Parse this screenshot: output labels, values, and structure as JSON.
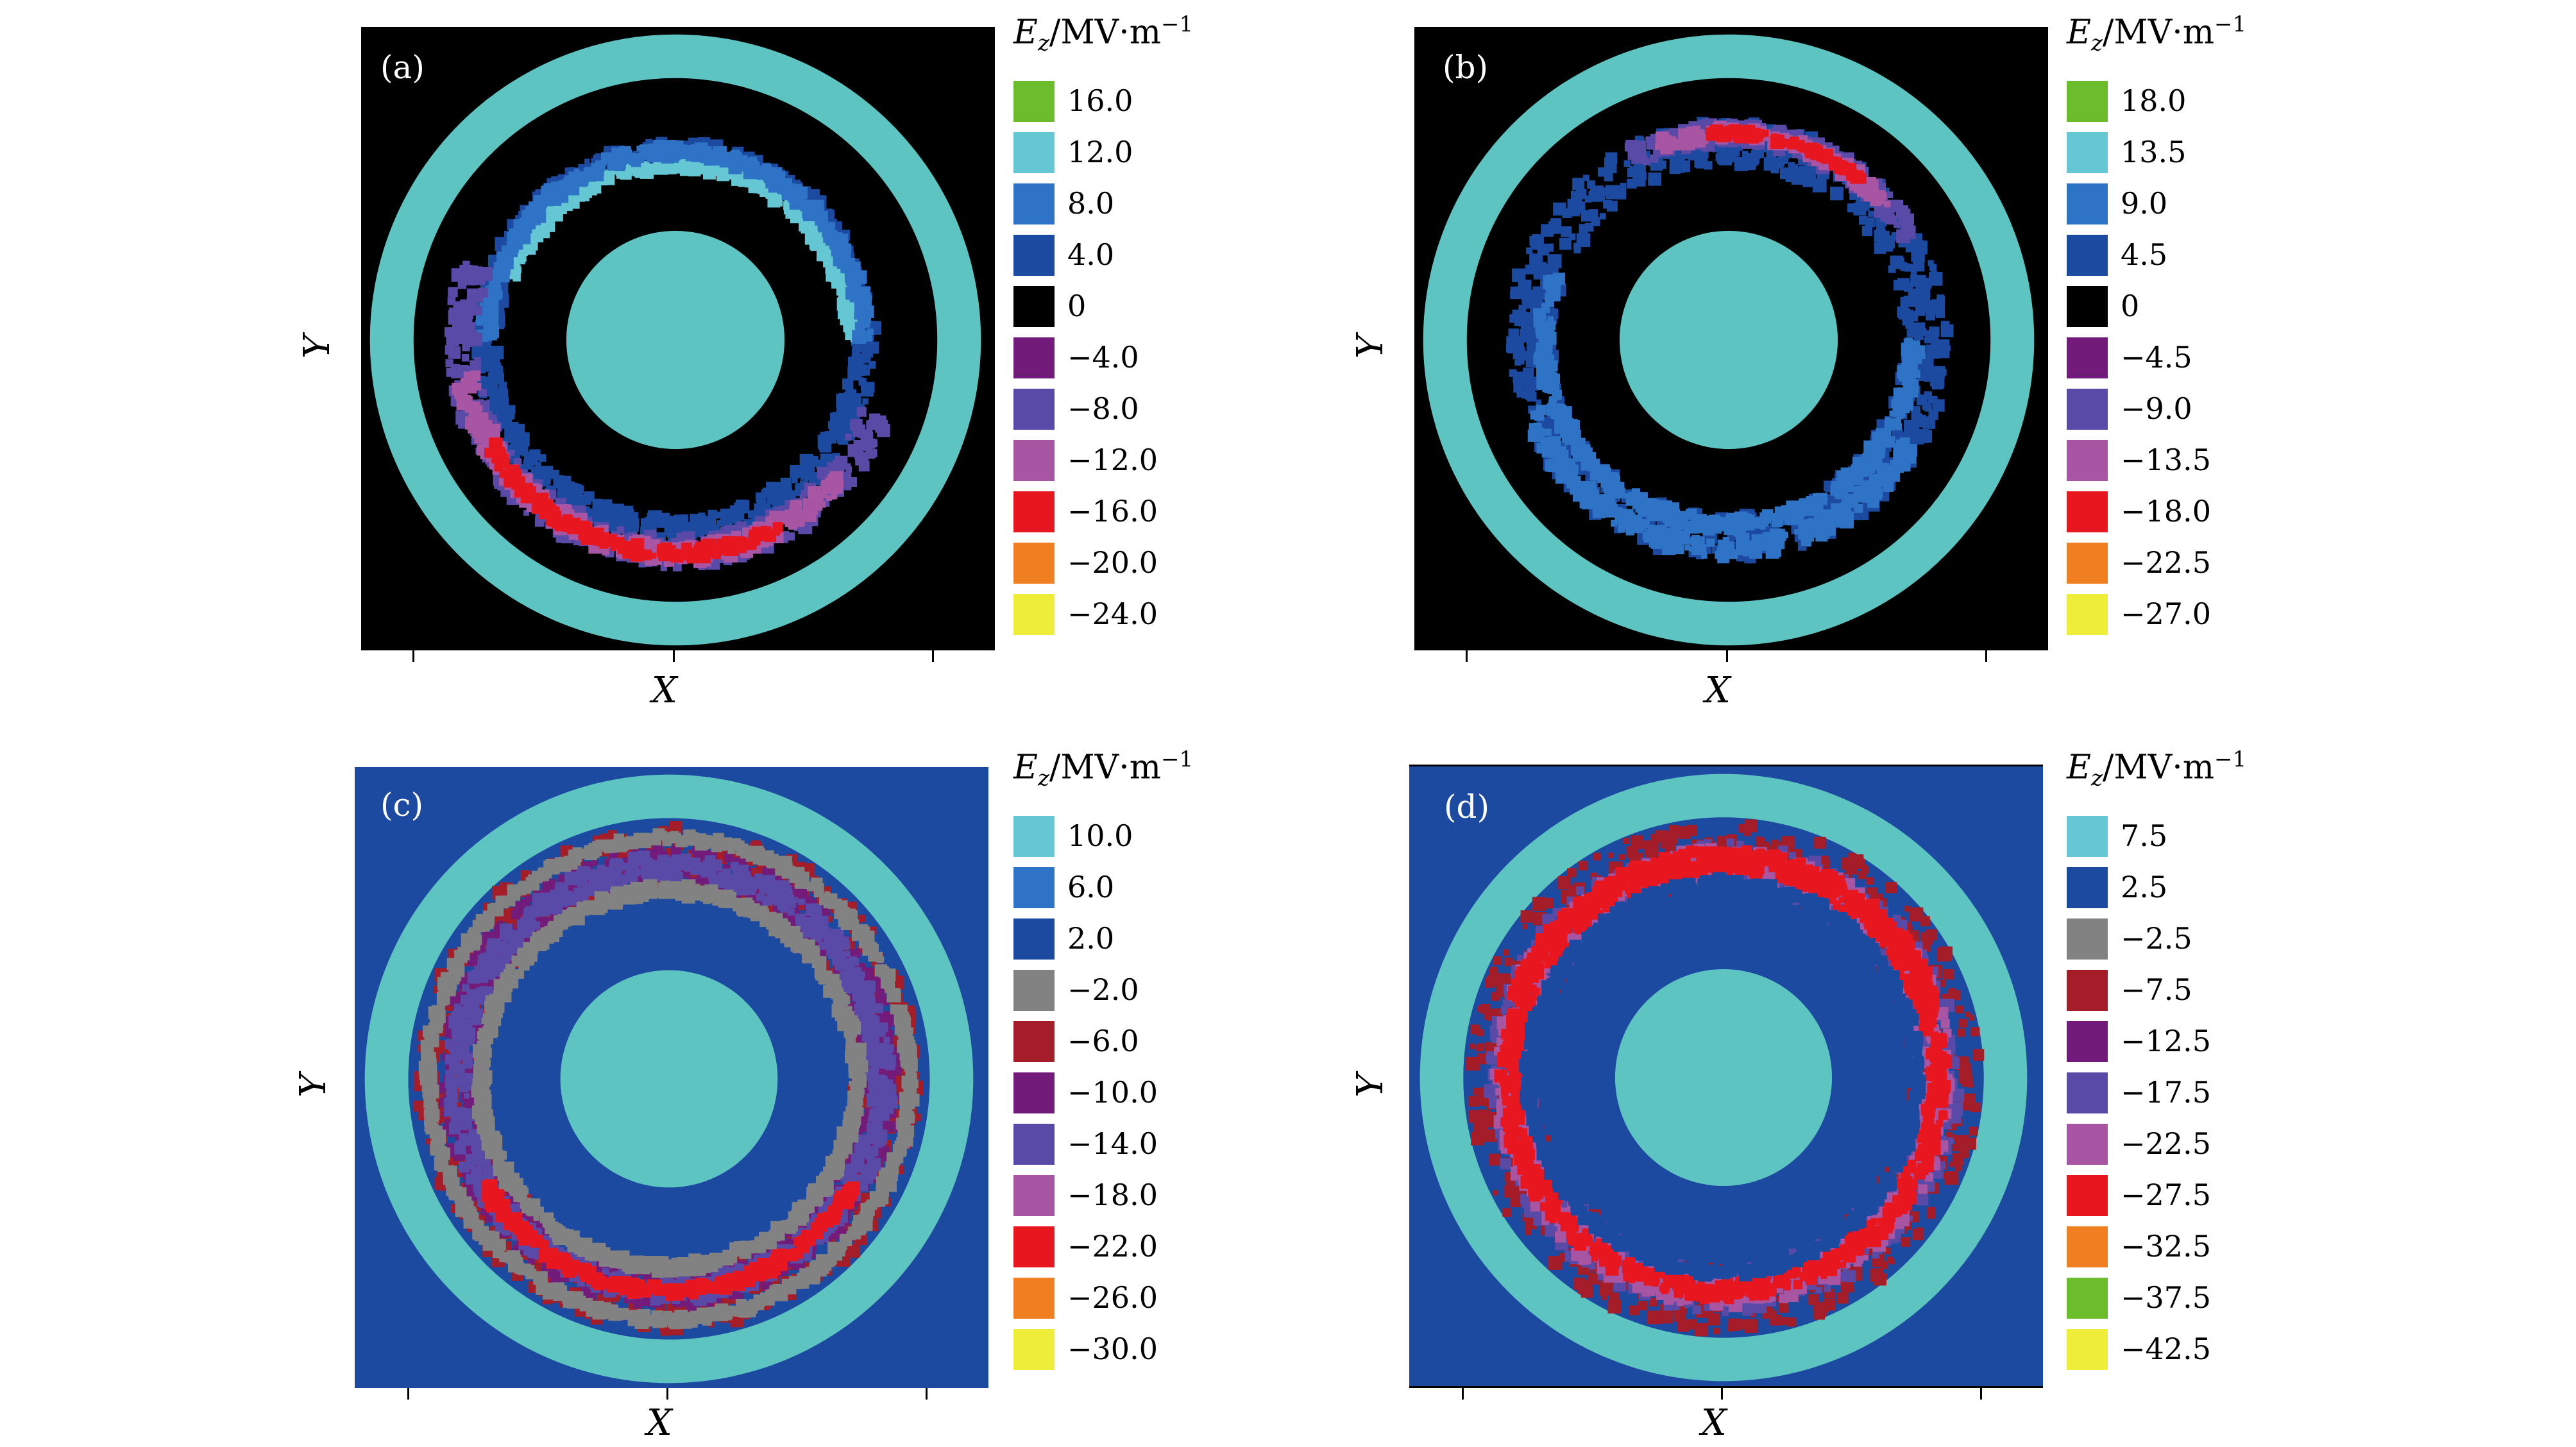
{
  "figure": {
    "legend_title": {
      "symbol": "E",
      "subscript": "z",
      "unit": "/MV·m",
      "exponent": "−1"
    },
    "panels": [
      {
        "label": "(a)",
        "xlabel": "X",
        "ylabel": "Y",
        "background": "#000000",
        "ring_color": "#5ec4c1",
        "legend": [
          {
            "value": "16.0",
            "color": "#6cbd2c"
          },
          {
            "value": "12.0",
            "color": "#64c7d3"
          },
          {
            "value": "8.0",
            "color": "#2f73c6"
          },
          {
            "value": "4.0",
            "color": "#1c4aa1"
          },
          {
            "value": "0",
            "color": "#000000"
          },
          {
            "value": "−4.0",
            "color": "#731b7b"
          },
          {
            "value": "−8.0",
            "color": "#5a4aa7"
          },
          {
            "value": "−12.0",
            "color": "#a855a4"
          },
          {
            "value": "−16.0",
            "color": "#e8171f"
          },
          {
            "value": "−20.0",
            "color": "#f07f22"
          },
          {
            "value": "−24.0",
            "color": "#eded3a"
          }
        ]
      },
      {
        "label": "(b)",
        "xlabel": "X",
        "ylabel": "Y",
        "background": "#000000",
        "ring_color": "#5ec4c1",
        "legend": [
          {
            "value": "18.0",
            "color": "#6cbd2c"
          },
          {
            "value": "13.5",
            "color": "#64c7d3"
          },
          {
            "value": "9.0",
            "color": "#2f73c6"
          },
          {
            "value": "4.5",
            "color": "#1c4aa1"
          },
          {
            "value": "0",
            "color": "#000000"
          },
          {
            "value": "−4.5",
            "color": "#731b7b"
          },
          {
            "value": "−9.0",
            "color": "#5a4aa7"
          },
          {
            "value": "−13.5",
            "color": "#a855a4"
          },
          {
            "value": "−18.0",
            "color": "#e8171f"
          },
          {
            "value": "−22.5",
            "color": "#f07f22"
          },
          {
            "value": "−27.0",
            "color": "#eded3a"
          }
        ]
      },
      {
        "label": "(c)",
        "xlabel": "X",
        "ylabel": "Y",
        "background": "#1c4aa1",
        "ring_color": "#5ec4c1",
        "legend": [
          {
            "value": "10.0",
            "color": "#64c7d3"
          },
          {
            "value": "6.0",
            "color": "#2f73c6"
          },
          {
            "value": "2.0",
            "color": "#1c4aa1"
          },
          {
            "value": "−2.0",
            "color": "#828282"
          },
          {
            "value": "−6.0",
            "color": "#a51d28"
          },
          {
            "value": "−10.0",
            "color": "#731b7b"
          },
          {
            "value": "−14.0",
            "color": "#5a4aa7"
          },
          {
            "value": "−18.0",
            "color": "#a855a4"
          },
          {
            "value": "−22.0",
            "color": "#e8171f"
          },
          {
            "value": "−26.0",
            "color": "#f07f22"
          },
          {
            "value": "−30.0",
            "color": "#eded3a"
          }
        ]
      },
      {
        "label": "(d)",
        "xlabel": "X",
        "ylabel": "Y",
        "background": "#1c4aa1",
        "ring_color": "#5ec4c1",
        "legend": [
          {
            "value": "7.5",
            "color": "#64c7d3"
          },
          {
            "value": "2.5",
            "color": "#1c4aa1"
          },
          {
            "value": "−2.5",
            "color": "#828282"
          },
          {
            "value": "−7.5",
            "color": "#a51d28"
          },
          {
            "value": "−12.5",
            "color": "#731b7b"
          },
          {
            "value": "−17.5",
            "color": "#5a4aa7"
          },
          {
            "value": "−22.5",
            "color": "#a855a4"
          },
          {
            "value": "−27.5",
            "color": "#e8171f"
          },
          {
            "value": "−32.5",
            "color": "#f07f22"
          },
          {
            "value": "−37.5",
            "color": "#6cbd2c"
          },
          {
            "value": "−42.5",
            "color": "#eded3a"
          }
        ]
      }
    ]
  },
  "chart_data": [
    {
      "type": "heatmap",
      "title": "(a)",
      "xlabel": "X",
      "ylabel": "Y",
      "colorbar_label": "E_z/MV·m^−1",
      "levels": [
        16.0,
        12.0,
        8.0,
        4.0,
        0,
        -4.0,
        -8.0,
        -12.0,
        -16.0,
        -20.0,
        -24.0
      ]
    },
    {
      "type": "heatmap",
      "title": "(b)",
      "xlabel": "X",
      "ylabel": "Y",
      "colorbar_label": "E_z/MV·m^−1",
      "levels": [
        18.0,
        13.5,
        9.0,
        4.5,
        0,
        -4.5,
        -9.0,
        -13.5,
        -18.0,
        -22.5,
        -27.0
      ]
    },
    {
      "type": "heatmap",
      "title": "(c)",
      "xlabel": "X",
      "ylabel": "Y",
      "colorbar_label": "E_z/MV·m^−1",
      "levels": [
        10.0,
        6.0,
        2.0,
        -2.0,
        -6.0,
        -10.0,
        -14.0,
        -18.0,
        -22.0,
        -26.0,
        -30.0
      ]
    },
    {
      "type": "heatmap",
      "title": "(d)",
      "xlabel": "X",
      "ylabel": "Y",
      "colorbar_label": "E_z/MV·m^−1",
      "levels": [
        7.5,
        2.5,
        -2.5,
        -7.5,
        -12.5,
        -17.5,
        -22.5,
        -27.5,
        -32.5,
        -37.5,
        -42.5
      ]
    }
  ]
}
